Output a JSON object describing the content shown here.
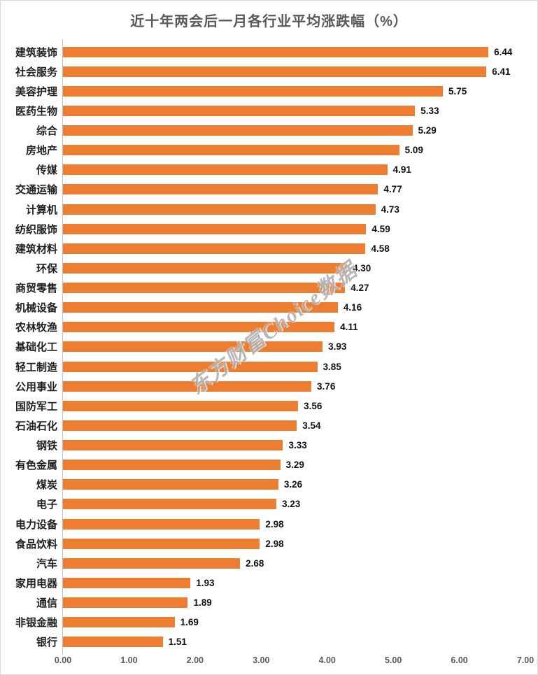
{
  "chart_data": {
    "type": "bar",
    "orientation": "horizontal",
    "title": "近十年两会后一月各行业平均涨跌幅（%）",
    "categories": [
      "建筑装饰",
      "社会服务",
      "美容护理",
      "医药生物",
      "综合",
      "房地产",
      "传媒",
      "交通运输",
      "计算机",
      "纺织服饰",
      "建筑材料",
      "环保",
      "商贸零售",
      "机械设备",
      "农林牧渔",
      "基础化工",
      "轻工制造",
      "公用事业",
      "国防军工",
      "石油石化",
      "钢铁",
      "有色金属",
      "煤炭",
      "电子",
      "电力设备",
      "食品饮料",
      "汽车",
      "家用电器",
      "通信",
      "非银金融",
      "银行"
    ],
    "values": [
      6.44,
      6.41,
      5.75,
      5.33,
      5.29,
      5.09,
      4.91,
      4.77,
      4.73,
      4.59,
      4.58,
      4.3,
      4.27,
      4.16,
      4.11,
      3.93,
      3.85,
      3.76,
      3.56,
      3.54,
      3.33,
      3.29,
      3.26,
      3.23,
      2.98,
      2.98,
      2.68,
      1.93,
      1.89,
      1.69,
      1.51
    ],
    "xlabel": "",
    "ylabel": "",
    "xlim": [
      0,
      7
    ],
    "x_ticks": [
      "0.00",
      "1.00",
      "2.00",
      "3.00",
      "4.00",
      "5.00",
      "6.00",
      "7.00"
    ],
    "grid": false,
    "legend": false,
    "data_labels": true,
    "bar_color": "#ED7D31",
    "title_color": "#595959",
    "axis_line_color": "#BFBFBF",
    "watermark": "东方财富Choice数据"
  }
}
